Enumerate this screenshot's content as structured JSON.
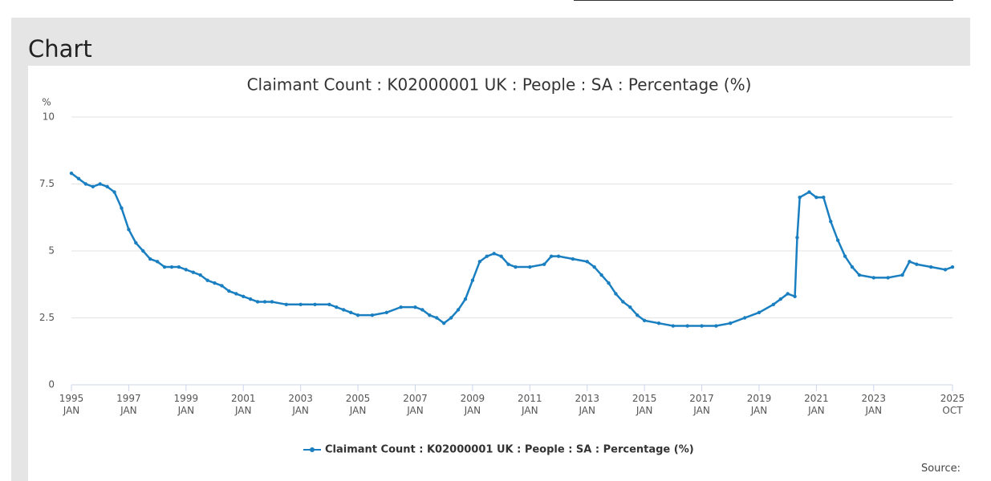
{
  "heading": "Chart",
  "source": "Source:",
  "chart_data": {
    "type": "line",
    "title": "Claimant Count : K02000001 UK : People : SA : Percentage (%)",
    "y_label": "%",
    "series": [
      {
        "name": "Claimant Count : K02000001 UK : People : SA : Percentage (%)",
        "color": "#1a7fc1",
        "x": [
          1995,
          1995.25,
          1995.5,
          1995.75,
          1996,
          1996.25,
          1996.5,
          1996.75,
          1997,
          1997.25,
          1997.5,
          1997.75,
          1998,
          1998.25,
          1998.5,
          1998.75,
          1999,
          1999.25,
          1999.5,
          1999.75,
          2000,
          2000.25,
          2000.5,
          2000.75,
          2001,
          2001.25,
          2001.5,
          2001.75,
          2002,
          2002.5,
          2003,
          2003.5,
          2004,
          2004.25,
          2004.5,
          2004.75,
          2005,
          2005.5,
          2006,
          2006.5,
          2007,
          2007.25,
          2007.5,
          2007.75,
          2008,
          2008.25,
          2008.5,
          2008.75,
          2009,
          2009.25,
          2009.5,
          2009.75,
          2010,
          2010.25,
          2010.5,
          2011,
          2011.5,
          2011.75,
          2012,
          2012.5,
          2013,
          2013.25,
          2013.5,
          2013.75,
          2014,
          2014.25,
          2014.5,
          2014.75,
          2015,
          2015.5,
          2016,
          2016.5,
          2017,
          2017.5,
          2018,
          2018.5,
          2019,
          2019.5,
          2019.75,
          2020,
          2020.25,
          2020.33,
          2020.42,
          2020.75,
          2021,
          2021.25,
          2021.5,
          2021.75,
          2022,
          2022.25,
          2022.5,
          2023,
          2023.5,
          2024,
          2024.25,
          2024.5,
          2025,
          2025.5,
          2025.75
        ],
        "values": [
          7.9,
          7.7,
          7.5,
          7.4,
          7.5,
          7.4,
          7.2,
          6.6,
          5.8,
          5.3,
          5.0,
          4.7,
          4.6,
          4.4,
          4.4,
          4.4,
          4.3,
          4.2,
          4.1,
          3.9,
          3.8,
          3.7,
          3.5,
          3.4,
          3.3,
          3.2,
          3.1,
          3.1,
          3.1,
          3.0,
          3.0,
          3.0,
          3.0,
          2.9,
          2.8,
          2.7,
          2.6,
          2.6,
          2.7,
          2.9,
          2.9,
          2.8,
          2.6,
          2.5,
          2.3,
          2.5,
          2.8,
          3.2,
          3.9,
          4.6,
          4.8,
          4.9,
          4.8,
          4.5,
          4.4,
          4.4,
          4.5,
          4.8,
          4.8,
          4.7,
          4.6,
          4.4,
          4.1,
          3.8,
          3.4,
          3.1,
          2.9,
          2.6,
          2.4,
          2.3,
          2.2,
          2.2,
          2.2,
          2.2,
          2.3,
          2.5,
          2.7,
          3.0,
          3.2,
          3.4,
          3.3,
          5.5,
          7.0,
          7.2,
          7.0,
          7.0,
          6.1,
          5.4,
          4.8,
          4.4,
          4.1,
          4.0,
          4.0,
          4.1,
          4.6,
          4.5,
          4.4,
          4.3,
          4.4
        ]
      }
    ],
    "xlim": [
      1995,
      2025.75
    ],
    "xticks": [
      {
        "value": 1995,
        "label": "1995 JAN"
      },
      {
        "value": 1997,
        "label": "1997 JAN"
      },
      {
        "value": 1999,
        "label": "1999 JAN"
      },
      {
        "value": 2001,
        "label": "2001 JAN"
      },
      {
        "value": 2003,
        "label": "2003 JAN"
      },
      {
        "value": 2005,
        "label": "2005 JAN"
      },
      {
        "value": 2007,
        "label": "2007 JAN"
      },
      {
        "value": 2009,
        "label": "2009 JAN"
      },
      {
        "value": 2011,
        "label": "2011 JAN"
      },
      {
        "value": 2013,
        "label": "2013 JAN"
      },
      {
        "value": 2015,
        "label": "2015 JAN"
      },
      {
        "value": 2017,
        "label": "2017 JAN"
      },
      {
        "value": 2019,
        "label": "2019 JAN"
      },
      {
        "value": 2021,
        "label": "2021 JAN"
      },
      {
        "value": 2023,
        "label": "2023 JAN"
      },
      {
        "value": 2025.75,
        "label": "2025 OCT"
      }
    ],
    "ylim": [
      0,
      10
    ],
    "yticks": [
      0,
      2.5,
      5,
      7.5,
      10
    ],
    "grid": true,
    "legend": "bottom"
  }
}
